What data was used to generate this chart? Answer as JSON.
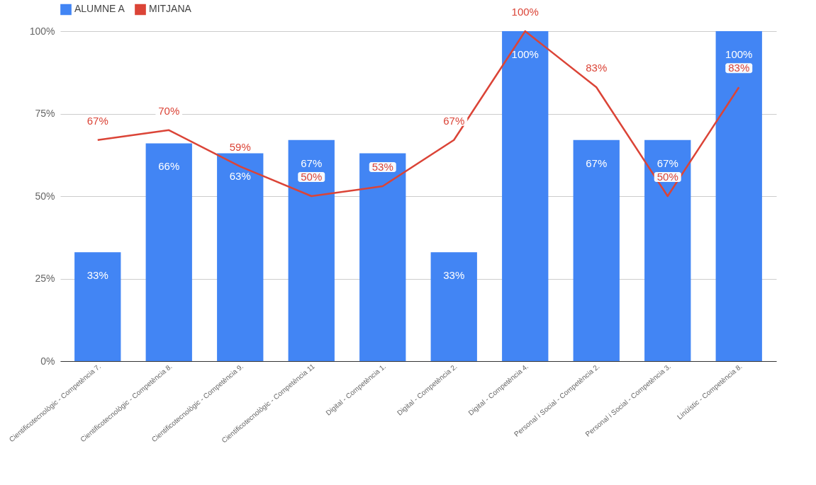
{
  "chart_data": {
    "type": "bar",
    "categories": [
      "Cientificotecnològic - Competència 7.",
      "Cientificotecnològic - Competència 8.",
      "Cientificotecnològic - Competència 9.",
      "Cientificotecnològic - Competència 11",
      "Digital - Competència 1.",
      "Digital - Competència 2.",
      "Digital - Competència 4.",
      "Personal i Social - Competència 2.",
      "Personal i Social - Competència 3.",
      "Linüístic - Competència 8."
    ],
    "series": [
      {
        "name": "ALUMNE A",
        "color": "#4285f4",
        "values": [
          33,
          66,
          63,
          67,
          63,
          33,
          100,
          67,
          67,
          100
        ],
        "value_labels": [
          "33%",
          "66%",
          "63%",
          "67%",
          null,
          "33%",
          "100%",
          "67%",
          "67%",
          "100%"
        ]
      },
      {
        "name": "MITJANA",
        "type": "line",
        "color": "#db4437",
        "values": [
          67,
          70,
          59,
          50,
          53,
          67,
          100,
          83,
          50,
          83
        ],
        "value_labels": [
          "67%",
          "70%",
          "59%",
          "50%",
          "53%",
          "67%",
          "100%",
          "83%",
          "50%",
          "83%"
        ]
      }
    ],
    "ylim": [
      0,
      100
    ],
    "yticks": [
      {
        "value": 0,
        "label": "0%"
      },
      {
        "value": 25,
        "label": "25%"
      },
      {
        "value": 50,
        "label": "50%"
      },
      {
        "value": 75,
        "label": "75%"
      },
      {
        "value": 100,
        "label": "100%"
      }
    ],
    "grid": "y",
    "legend": "top",
    "marker": "none"
  }
}
